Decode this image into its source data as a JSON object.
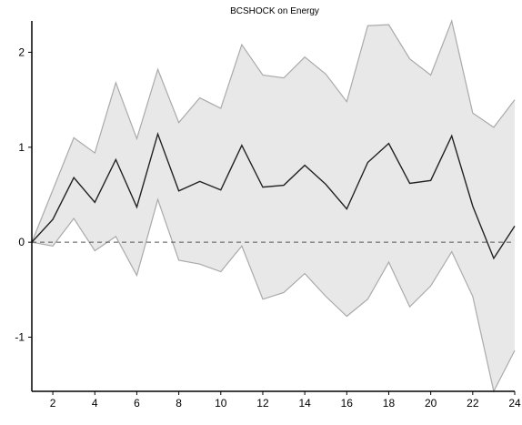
{
  "chart_data": {
    "type": "line",
    "title": "BCSHOCK on Energy",
    "xlabel": "",
    "ylabel": "",
    "xlim": [
      1,
      24
    ],
    "ylim": [
      -1.57,
      2.33
    ],
    "x_ticks": [
      2,
      4,
      6,
      8,
      10,
      12,
      14,
      16,
      18,
      20,
      22,
      24
    ],
    "y_ticks": [
      -1,
      0,
      1,
      2
    ],
    "zero_line": "dashed",
    "grid": false,
    "legend": "none",
    "colors": {
      "band_fill": "#e8e8e8",
      "band_edge": "#aaaaaa",
      "response": "#222222",
      "zero": "#555555"
    },
    "x": [
      1,
      2,
      3,
      4,
      5,
      6,
      7,
      8,
      9,
      10,
      11,
      12,
      13,
      14,
      15,
      16,
      17,
      18,
      19,
      20,
      21,
      22,
      23,
      24
    ],
    "series": [
      {
        "role": "upper",
        "values": [
          0,
          0.55,
          1.1,
          0.94,
          1.68,
          1.09,
          1.82,
          1.26,
          1.52,
          1.41,
          2.08,
          1.76,
          1.73,
          1.95,
          1.77,
          1.48,
          2.28,
          2.29,
          1.93,
          1.76,
          2.33,
          1.36,
          1.21,
          1.5
        ]
      },
      {
        "role": "response",
        "values": [
          0,
          0.24,
          0.68,
          0.42,
          0.87,
          0.37,
          1.14,
          0.54,
          0.64,
          0.55,
          1.02,
          0.58,
          0.6,
          0.81,
          0.61,
          0.35,
          0.84,
          1.04,
          0.62,
          0.65,
          1.12,
          0.38,
          -0.17,
          0.17
        ]
      },
      {
        "role": "lower",
        "values": [
          0,
          -0.04,
          0.25,
          -0.09,
          0.06,
          -0.35,
          0.45,
          -0.19,
          -0.23,
          -0.31,
          -0.04,
          -0.6,
          -0.53,
          -0.33,
          -0.57,
          -0.78,
          -0.6,
          -0.21,
          -0.68,
          -0.46,
          -0.1,
          -0.57,
          -1.57,
          -1.14
        ]
      }
    ]
  }
}
